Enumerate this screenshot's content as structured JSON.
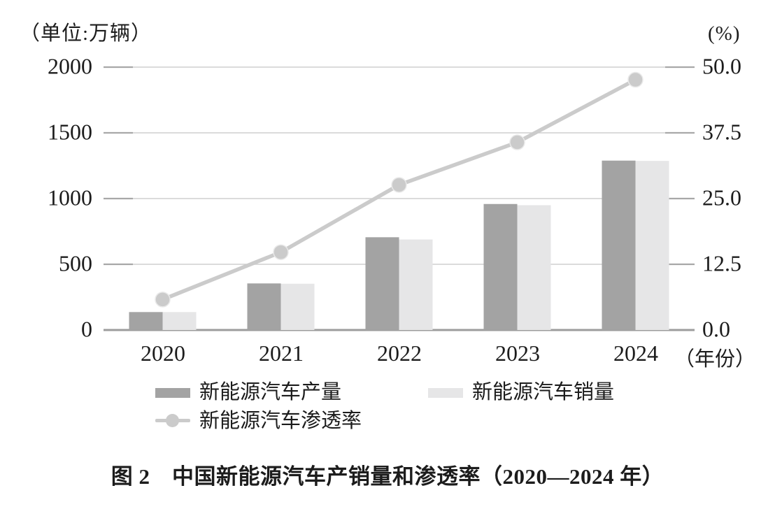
{
  "figure": {
    "caption": "图 2　中国新能源汽车产销量和渗透率（2020—2024 年）"
  },
  "axes": {
    "left_unit": "（单位:万辆）",
    "right_unit": "(%)",
    "left_ticks": [
      "2000",
      "1500",
      "1000",
      "500",
      "0"
    ],
    "right_ticks": [
      "50.0",
      "37.5",
      "25.0",
      "12.5",
      "0.0"
    ],
    "x_labels": [
      "2020",
      "2021",
      "2022",
      "2023",
      "2024"
    ],
    "x_suffix": "（年份）"
  },
  "legend": {
    "production_label": "新能源汽车产量",
    "sales_label": "新能源汽车销量",
    "penetration_label": "新能源汽车渗透率"
  },
  "colors": {
    "production_bar": "#a3a3a3",
    "sales_bar": "#e6e6e7",
    "line": "#cbcbcb",
    "gridline": "#cfcfcf",
    "grid_stub": "#a8a8a8",
    "baseline": "#9c9c9c",
    "text": "#1c1c1c"
  },
  "chart_data": {
    "type": "bar+line",
    "categories": [
      "2020",
      "2021",
      "2022",
      "2023",
      "2024"
    ],
    "series": [
      {
        "name": "新能源汽车产量",
        "type": "bar",
        "axis": "left",
        "values": [
          136.6,
          354.5,
          705.8,
          958.7,
          1288.8
        ]
      },
      {
        "name": "新能源汽车销量",
        "type": "bar",
        "axis": "left",
        "values": [
          136.7,
          352.1,
          688.7,
          949.5,
          1286.6
        ]
      },
      {
        "name": "新能源汽车渗透率",
        "type": "line",
        "axis": "right",
        "values": [
          5.8,
          14.8,
          27.6,
          35.7,
          47.6
        ]
      }
    ],
    "title": "图 2　中国新能源汽车产销量和渗透率（2020—2024 年）",
    "xlabel": "年份",
    "left_ylabel": "单位:万辆",
    "left_ylim": [
      0,
      2000
    ],
    "left_tick_step": 500,
    "right_ylabel": "%",
    "right_ylim": [
      0,
      50
    ],
    "right_tick_step": 12.5,
    "grid": true,
    "legend_position": "bottom"
  }
}
